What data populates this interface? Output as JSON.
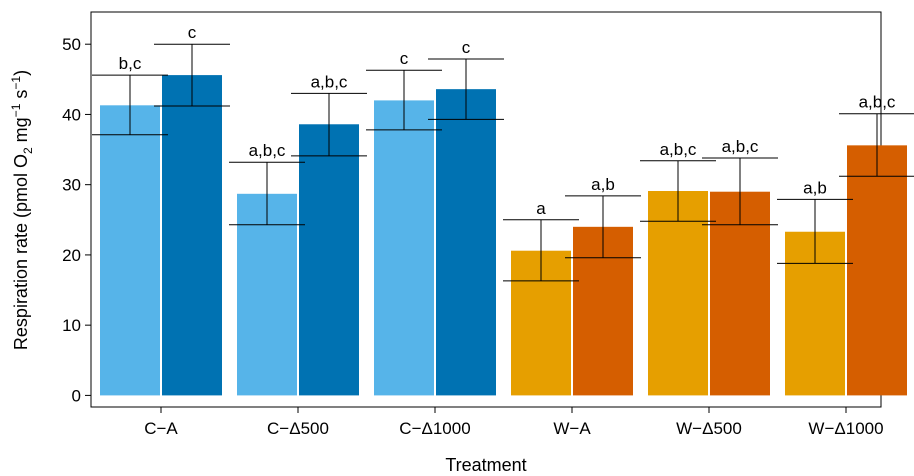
{
  "chart_data": {
    "type": "bar",
    "xlabel": "Treatment",
    "ylabel": "Respiration rate (pmol O2 mg-1 s-1)",
    "ylim": [
      0,
      55
    ],
    "yticks": [
      0,
      10,
      20,
      30,
      40,
      50
    ],
    "categories": [
      "C−A",
      "C−Δ500",
      "C−Δ1000",
      "W−A",
      "W−Δ500",
      "W−Δ1000"
    ],
    "series": [
      {
        "values": [
          41.3,
          28.7,
          42.0,
          20.6,
          29.1,
          23.3
        ],
        "err_low": [
          37.1,
          24.3,
          37.8,
          16.3,
          24.8,
          18.8
        ],
        "err_high": [
          45.6,
          33.2,
          46.3,
          25.0,
          33.4,
          27.9
        ],
        "labels": [
          "b,c",
          "a,b,c",
          "c",
          "a",
          "a,b,c",
          "a,b"
        ],
        "colors": [
          "#56B4E9",
          "#56B4E9",
          "#56B4E9",
          "#E69F00",
          "#E69F00",
          "#E69F00"
        ]
      },
      {
        "values": [
          45.6,
          38.6,
          43.6,
          24.0,
          29.0,
          35.6
        ],
        "err_low": [
          41.2,
          34.1,
          39.3,
          19.6,
          24.3,
          31.2
        ],
        "err_high": [
          50.0,
          43.0,
          47.9,
          28.4,
          33.8,
          40.1
        ],
        "labels": [
          "c",
          "a,b,c",
          "c",
          "a,b",
          "a,b,c",
          "a,b,c"
        ],
        "colors": [
          "#0072B2",
          "#0072B2",
          "#0072B2",
          "#D55E00",
          "#D55E00",
          "#D55E00"
        ]
      }
    ],
    "legend": "none",
    "grid": false
  }
}
